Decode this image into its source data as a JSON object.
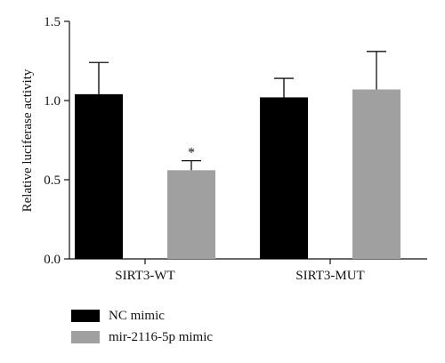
{
  "chart_data": {
    "type": "bar",
    "title": "",
    "xlabel": "",
    "ylabel": "Relative luciferase activity",
    "ylim": [
      0,
      1.5
    ],
    "yticks": [
      "0.0",
      "0.5",
      "1.0",
      "1.5"
    ],
    "categories": [
      "SIRT3-WT",
      "SIRT3-MUT"
    ],
    "series": [
      {
        "name": "NC mimic",
        "color": "#000000",
        "values": [
          1.04,
          1.02
        ],
        "errors": [
          0.2,
          0.12
        ]
      },
      {
        "name": "mir-2116-5p mimic",
        "color": "#a0a0a0",
        "values": [
          0.56,
          1.07
        ],
        "errors": [
          0.06,
          0.24
        ]
      }
    ],
    "annotations": [
      {
        "text": "*",
        "category": "SIRT3-WT",
        "series": "mir-2116-5p mimic"
      }
    ],
    "legend": "bottom-left",
    "grid": false
  }
}
